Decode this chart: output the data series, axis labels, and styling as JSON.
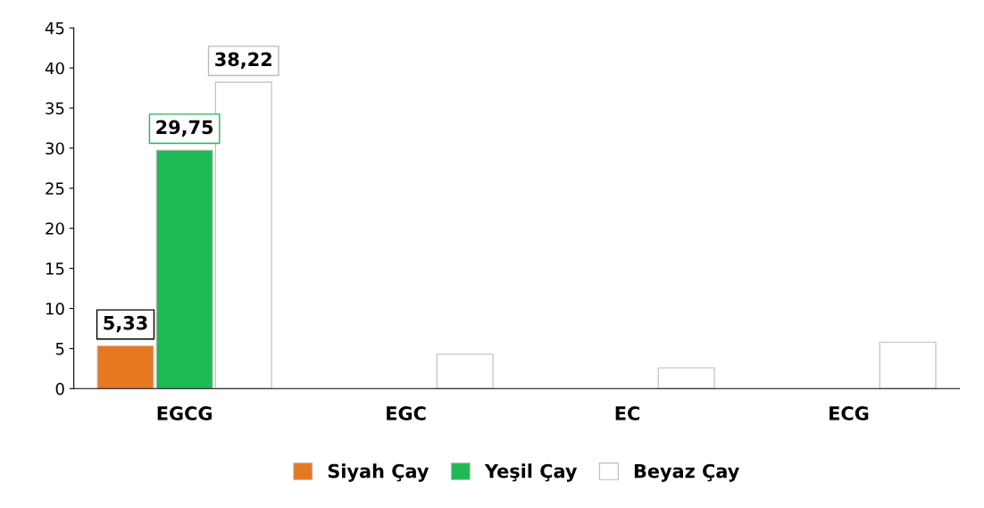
{
  "chart_data": {
    "type": "bar",
    "categories": [
      "EGCG",
      "EGC",
      "EC",
      "ECG"
    ],
    "series": [
      {
        "name": "Siyah Çay",
        "color": "#e87722",
        "values": [
          5.33,
          null,
          null,
          null
        ],
        "value_labels": [
          "5,33",
          null,
          null,
          null
        ]
      },
      {
        "name": "Yeşil Çay",
        "color": "#1db954",
        "values": [
          29.75,
          null,
          null,
          null
        ],
        "value_labels": [
          "29,75",
          null,
          null,
          null
        ]
      },
      {
        "name": "Beyaz Çay",
        "color": "#ffffff",
        "values": [
          38.22,
          4.3,
          2.6,
          5.8
        ],
        "value_labels": [
          "38,22",
          null,
          null,
          null
        ]
      }
    ],
    "ylim": [
      0,
      45
    ],
    "yticks": [
      0,
      5,
      10,
      15,
      20,
      25,
      30,
      35,
      40,
      45
    ],
    "grid": false,
    "legend": "bottom"
  }
}
